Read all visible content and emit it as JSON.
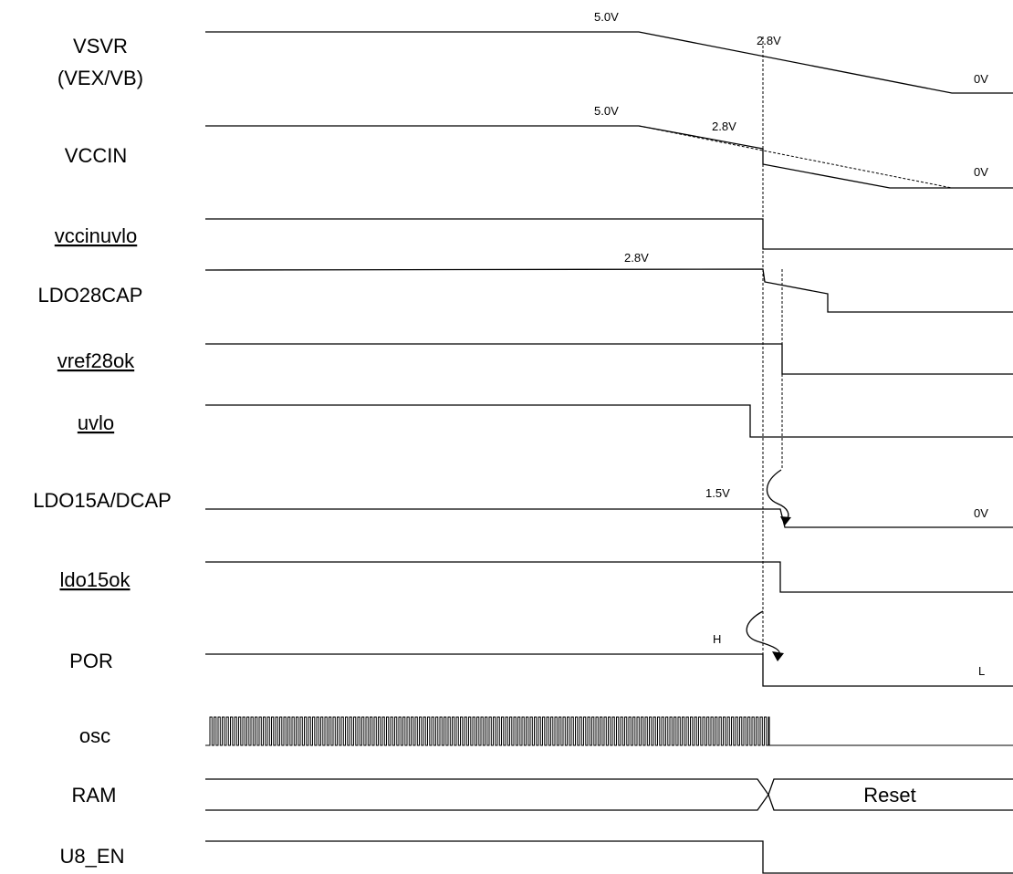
{
  "signals": [
    {
      "id": "vsvr",
      "label_line1": "VSVR",
      "label_line2": "(VEX/VB)"
    },
    {
      "id": "vccin",
      "label": "VCCIN"
    },
    {
      "id": "vccinuvlo",
      "label": "vccinuvlo"
    },
    {
      "id": "ldo28cap",
      "label": "LDO28CAP"
    },
    {
      "id": "vref28ok",
      "label": "vref28ok"
    },
    {
      "id": "uvlo",
      "label": "uvlo"
    },
    {
      "id": "ldo15adcap",
      "label": "LDO15A/DCAP"
    },
    {
      "id": "ldo15ok",
      "label": "ldo15ok"
    },
    {
      "id": "por",
      "label": "POR"
    },
    {
      "id": "osc",
      "label": "osc"
    },
    {
      "id": "ram",
      "label": "RAM"
    },
    {
      "id": "u8en",
      "label": "U8_EN"
    }
  ],
  "annotations": {
    "vsvr_start": "5.0V",
    "vsvr_mid": "2.8V",
    "vsvr_end": "0V",
    "vccin_start": "5.0V",
    "vccin_mid": "2.8V",
    "vccin_end": "0V",
    "ldo28_level": "2.8V",
    "ldo15_level": "1.5V",
    "ldo15_end": "0V",
    "por_high": "H",
    "por_low": "L",
    "ram_state": "Reset"
  }
}
